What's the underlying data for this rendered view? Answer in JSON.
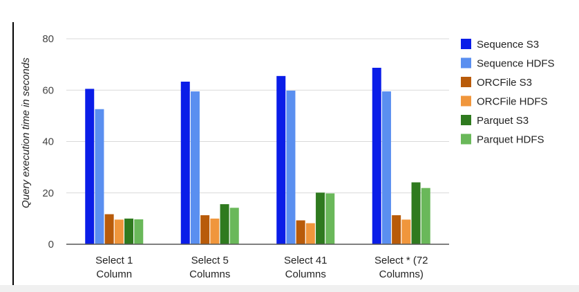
{
  "chart_data": {
    "type": "bar",
    "xlabel": "",
    "ylabel": "Query execution time in seconds",
    "ylim": [
      0,
      80
    ],
    "yticks": [
      0,
      20,
      40,
      60,
      80
    ],
    "grid": true,
    "legend_position": "right",
    "categories": [
      [
        "Select 1",
        "Column"
      ],
      [
        "Select 5",
        "Columns"
      ],
      [
        "Select 41",
        "Columns"
      ],
      [
        "Select * (72",
        "Columns)"
      ]
    ],
    "series": [
      {
        "name": "Sequence S3",
        "color": "#0a1de8",
        "values": [
          60.5,
          63.3,
          65.5,
          68.7
        ]
      },
      {
        "name": "Sequence HDFS",
        "color": "#5a8ff0",
        "values": [
          52.6,
          59.5,
          59.8,
          59.5
        ]
      },
      {
        "name": "ORCFile S3",
        "color": "#b85b0a",
        "values": [
          11.7,
          11.3,
          9.3,
          11.3
        ]
      },
      {
        "name": "ORCFile HDFS",
        "color": "#f0963c",
        "values": [
          9.6,
          10.0,
          8.2,
          9.6
        ]
      },
      {
        "name": "Parquet S3",
        "color": "#2f7a1f",
        "values": [
          10.0,
          15.6,
          20.1,
          24.1
        ]
      },
      {
        "name": "Parquet HDFS",
        "color": "#6ab85a",
        "values": [
          9.7,
          14.2,
          19.8,
          21.9
        ]
      }
    ]
  }
}
